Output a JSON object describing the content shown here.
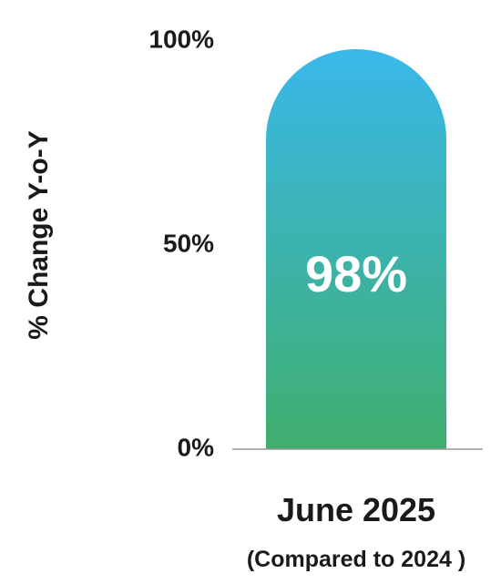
{
  "chart_data": {
    "type": "bar",
    "categories": [
      "June 2025"
    ],
    "category_note": "(Compared to 2024 )",
    "values": [
      98
    ],
    "data_labels": [
      "98%"
    ],
    "ylabel": "% Change Y-o-Y",
    "yticks": [
      {
        "value": 0,
        "label": "0%"
      },
      {
        "value": 50,
        "label": "50%"
      },
      {
        "value": 100,
        "label": "100%"
      }
    ],
    "ylim": [
      0,
      100
    ],
    "grid": false,
    "colors": {
      "bar_top": "#3ab8ea",
      "bar_bottom": "#3fae6e",
      "baseline": "#999999",
      "text": "#1a1a1a",
      "label": "#ffffff"
    }
  }
}
